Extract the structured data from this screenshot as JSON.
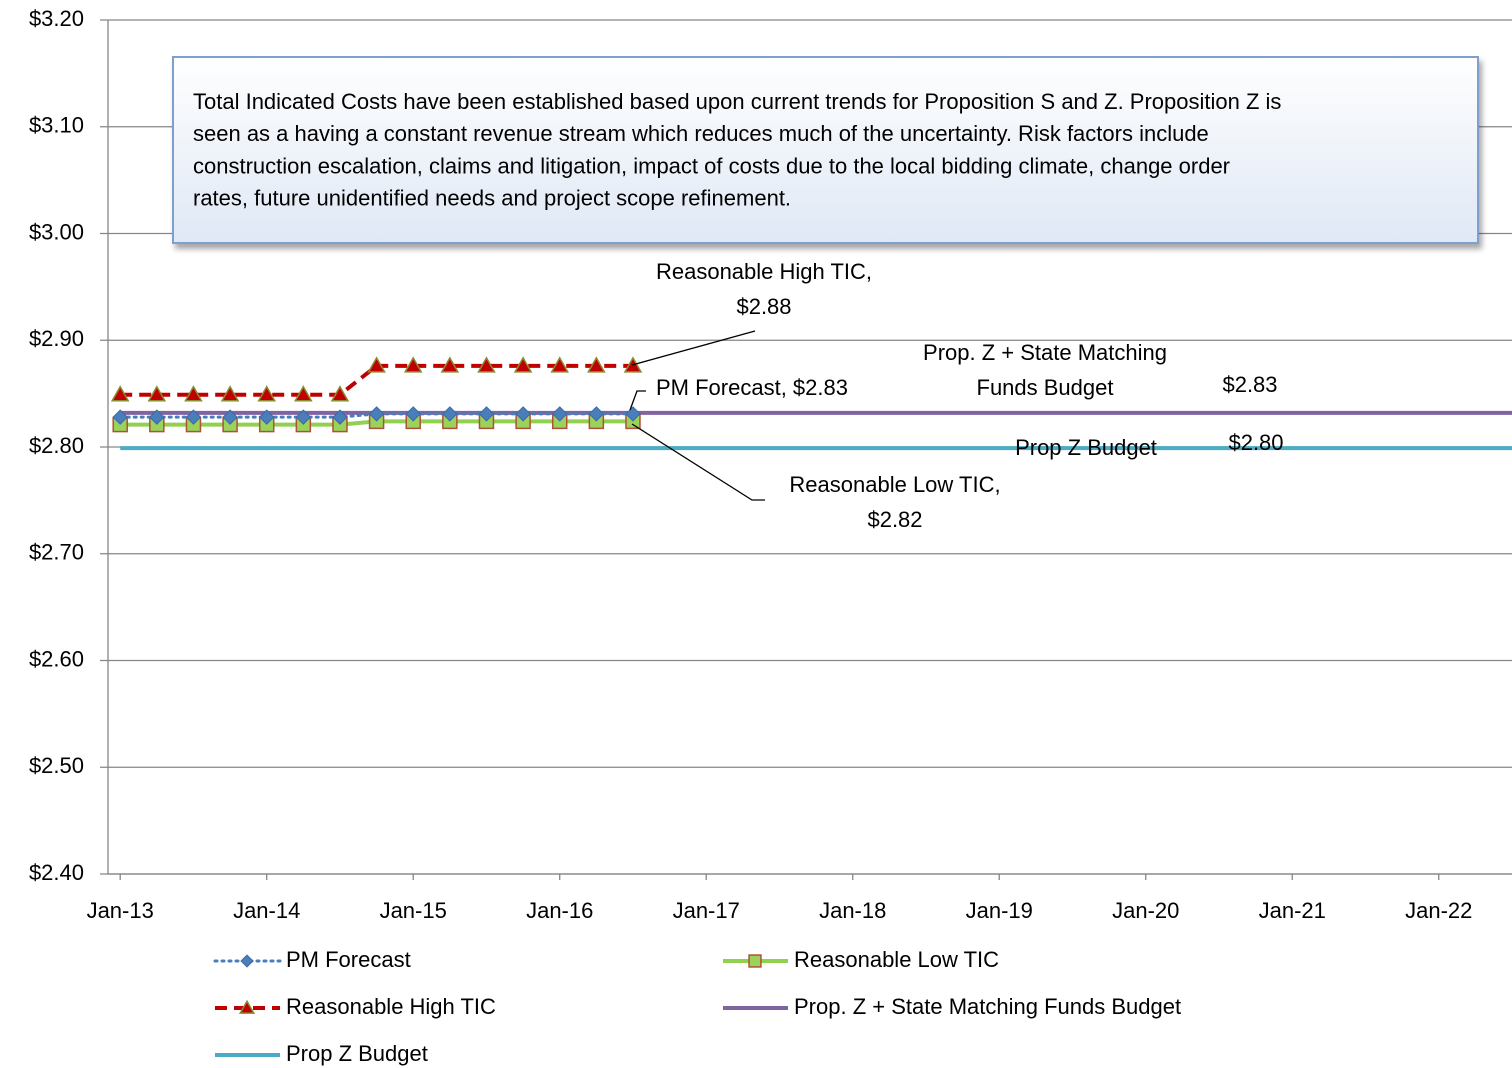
{
  "chart_data": {
    "type": "line",
    "xlim": [
      "2012-12",
      "2022-07"
    ],
    "xticks": [
      {
        "value": "2013-01",
        "label": "Jan-13"
      },
      {
        "value": "2014-01",
        "label": "Jan-14"
      },
      {
        "value": "2015-01",
        "label": "Jan-15"
      },
      {
        "value": "2016-01",
        "label": "Jan-16"
      },
      {
        "value": "2017-01",
        "label": "Jan-17"
      },
      {
        "value": "2018-01",
        "label": "Jan-18"
      },
      {
        "value": "2019-01",
        "label": "Jan-19"
      },
      {
        "value": "2020-01",
        "label": "Jan-20"
      },
      {
        "value": "2021-01",
        "label": "Jan-21"
      },
      {
        "value": "2022-01",
        "label": "Jan-22"
      }
    ],
    "ylim": [
      2.4,
      3.2
    ],
    "yticks": [
      {
        "value": 2.4,
        "label": "$2.40"
      },
      {
        "value": 2.5,
        "label": "$2.50"
      },
      {
        "value": 2.6,
        "label": "$2.60"
      },
      {
        "value": 2.7,
        "label": "$2.70"
      },
      {
        "value": 2.8,
        "label": "$2.80"
      },
      {
        "value": 2.9,
        "label": "$2.90"
      },
      {
        "value": 3.0,
        "label": "$3.00"
      },
      {
        "value": 3.1,
        "label": "$3.10"
      },
      {
        "value": 3.2,
        "label": "$3.20"
      }
    ],
    "grid": true,
    "legend": "bottom",
    "series": [
      {
        "name": "PM Forecast",
        "color": "#4a7ebb",
        "style": "dotted",
        "marker": "diamond",
        "x": [
          "2013-01",
          "2013-04",
          "2013-07",
          "2013-10",
          "2014-01",
          "2014-04",
          "2014-07",
          "2014-10",
          "2015-01",
          "2015-04",
          "2015-07",
          "2015-10",
          "2016-01",
          "2016-04",
          "2016-07"
        ],
        "values": [
          2.828,
          2.828,
          2.828,
          2.828,
          2.828,
          2.828,
          2.828,
          2.831,
          2.831,
          2.831,
          2.831,
          2.831,
          2.831,
          2.831,
          2.831
        ]
      },
      {
        "name": "Reasonable Low TIC",
        "color": "#92d050",
        "style": "solid",
        "marker": "square",
        "x": [
          "2013-01",
          "2013-04",
          "2013-07",
          "2013-10",
          "2014-01",
          "2014-04",
          "2014-07",
          "2014-10",
          "2015-01",
          "2015-04",
          "2015-07",
          "2015-10",
          "2016-01",
          "2016-04",
          "2016-07"
        ],
        "values": [
          2.821,
          2.821,
          2.821,
          2.821,
          2.821,
          2.821,
          2.821,
          2.824,
          2.824,
          2.824,
          2.824,
          2.824,
          2.824,
          2.824,
          2.824
        ]
      },
      {
        "name": "Reasonable High TIC",
        "color": "#c00000",
        "style": "dashed",
        "marker": "triangle",
        "x": [
          "2013-01",
          "2013-04",
          "2013-07",
          "2013-10",
          "2014-01",
          "2014-04",
          "2014-07",
          "2014-10",
          "2015-01",
          "2015-04",
          "2015-07",
          "2015-10",
          "2016-01",
          "2016-04",
          "2016-07"
        ],
        "values": [
          2.849,
          2.849,
          2.849,
          2.849,
          2.849,
          2.849,
          2.849,
          2.876,
          2.876,
          2.876,
          2.876,
          2.876,
          2.876,
          2.876,
          2.876
        ]
      },
      {
        "name": "Prop. Z + State Matching Funds Budget",
        "color": "#8064a2",
        "style": "solid",
        "marker": "none",
        "x": [
          "2013-01",
          "2022-07"
        ],
        "values": [
          2.832,
          2.832
        ]
      },
      {
        "name": "Prop Z Budget",
        "color": "#4bacc6",
        "style": "solid",
        "marker": "none",
        "x": [
          "2013-01",
          "2022-07"
        ],
        "values": [
          2.799,
          2.799
        ]
      }
    ],
    "textbox": [
      "Total Indicated Costs have been established based upon current trends for Proposition S and Z.  Proposition Z is",
      "seen as a having a constant revenue stream which reduces much of the uncertainty.  Risk factors include",
      "construction escalation, claims and litigation, impact of costs due to the  local bidding climate, change order",
      "rates, future unidentified needs and project scope refinement."
    ],
    "annotations": [
      {
        "text": "Reasonable High TIC,"
      },
      {
        "text": "$2.88"
      },
      {
        "text": "PM Forecast,  $2.83"
      },
      {
        "text": "Prop. Z + State Matching"
      },
      {
        "text": "Funds Budget"
      },
      {
        "text": "$2.83"
      },
      {
        "text": "Prop Z Budget"
      },
      {
        "text": "$2.80"
      },
      {
        "text": "Reasonable Low TIC,"
      },
      {
        "text": "$2.82"
      }
    ]
  }
}
